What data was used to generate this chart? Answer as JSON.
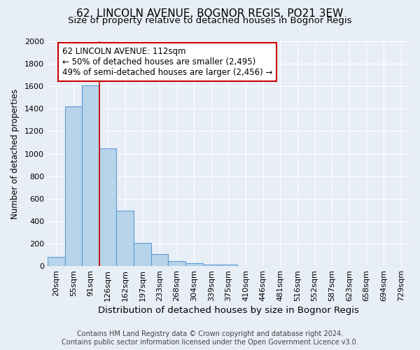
{
  "title": "62, LINCOLN AVENUE, BOGNOR REGIS, PO21 3EW",
  "subtitle": "Size of property relative to detached houses in Bognor Regis",
  "xlabel": "Distribution of detached houses by size in Bognor Regis",
  "ylabel": "Number of detached properties",
  "categories": [
    "20sqm",
    "55sqm",
    "91sqm",
    "126sqm",
    "162sqm",
    "197sqm",
    "233sqm",
    "268sqm",
    "304sqm",
    "339sqm",
    "375sqm",
    "410sqm",
    "446sqm",
    "481sqm",
    "516sqm",
    "552sqm",
    "587sqm",
    "623sqm",
    "658sqm",
    "694sqm",
    "729sqm"
  ],
  "values": [
    80,
    1420,
    1610,
    1050,
    490,
    205,
    107,
    45,
    25,
    15,
    10,
    0,
    0,
    0,
    0,
    0,
    0,
    0,
    0,
    0,
    0
  ],
  "bar_color": "#b8d4ea",
  "bar_edge_color": "#5b9bd5",
  "red_line_index": 2,
  "annotation_text": "62 LINCOLN AVENUE: 112sqm\n← 50% of detached houses are smaller (2,495)\n49% of semi-detached houses are larger (2,456) →",
  "annotation_box_color": "#ffffff",
  "annotation_box_edge": "#cc0000",
  "ylim": [
    0,
    2000
  ],
  "yticks": [
    0,
    200,
    400,
    600,
    800,
    1000,
    1200,
    1400,
    1600,
    1800,
    2000
  ],
  "background_color": "#e8eef6",
  "plot_bg_color": "#e8eef6",
  "grid_color": "#ffffff",
  "footer": "Contains HM Land Registry data © Crown copyright and database right 2024.\nContains public sector information licensed under the Open Government Licence v3.0.",
  "title_fontsize": 11,
  "subtitle_fontsize": 9.5,
  "xlabel_fontsize": 9.5,
  "ylabel_fontsize": 8.5,
  "tick_fontsize": 8,
  "footer_fontsize": 7,
  "annotation_fontsize": 8.5
}
